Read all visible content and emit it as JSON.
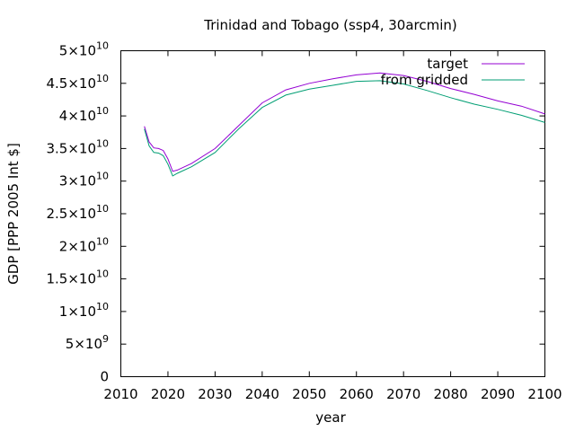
{
  "chart_data": {
    "type": "line",
    "title": "Trinidad and Tobago (ssp4, 30arcmin)",
    "xlabel": "year",
    "ylabel": "GDP [PPP 2005 Int $]",
    "xlim": [
      2010,
      2100
    ],
    "ylim": [
      0,
      50000000000
    ],
    "xticks": [
      {
        "value": 2010,
        "label": "2010"
      },
      {
        "value": 2020,
        "label": "2020"
      },
      {
        "value": 2030,
        "label": "2030"
      },
      {
        "value": 2040,
        "label": "2040"
      },
      {
        "value": 2050,
        "label": "2050"
      },
      {
        "value": 2060,
        "label": "2060"
      },
      {
        "value": 2070,
        "label": "2070"
      },
      {
        "value": 2080,
        "label": "2080"
      },
      {
        "value": 2090,
        "label": "2090"
      },
      {
        "value": 2100,
        "label": "2100"
      }
    ],
    "yticks": [
      {
        "value": 0,
        "mantissa": "0",
        "exponent": ""
      },
      {
        "value": 5000000000,
        "mantissa": "5×10",
        "exponent": "9"
      },
      {
        "value": 10000000000,
        "mantissa": "1×10",
        "exponent": "10"
      },
      {
        "value": 15000000000,
        "mantissa": "1.5×10",
        "exponent": "10"
      },
      {
        "value": 20000000000,
        "mantissa": "2×10",
        "exponent": "10"
      },
      {
        "value": 25000000000,
        "mantissa": "2.5×10",
        "exponent": "10"
      },
      {
        "value": 30000000000,
        "mantissa": "3×10",
        "exponent": "10"
      },
      {
        "value": 35000000000,
        "mantissa": "3.5×10",
        "exponent": "10"
      },
      {
        "value": 40000000000,
        "mantissa": "4×10",
        "exponent": "10"
      },
      {
        "value": 45000000000,
        "mantissa": "4.5×10",
        "exponent": "10"
      },
      {
        "value": 50000000000,
        "mantissa": "5×10",
        "exponent": "10"
      }
    ],
    "grid": false,
    "legend_position": "top-right",
    "series": [
      {
        "name": "target",
        "color": "#9400d3",
        "x": [
          2015,
          2016,
          2017,
          2018,
          2019,
          2020,
          2021,
          2022,
          2025,
          2030,
          2035,
          2040,
          2045,
          2050,
          2055,
          2060,
          2065,
          2070,
          2075,
          2080,
          2085,
          2090,
          2095,
          2100
        ],
        "y": [
          38400000000,
          36000000000,
          35100000000,
          35000000000,
          34700000000,
          33400000000,
          31500000000,
          31700000000,
          32700000000,
          35000000000,
          38500000000,
          42000000000,
          44000000000,
          45000000000,
          45700000000,
          46300000000,
          46600000000,
          46200000000,
          45300000000,
          44200000000,
          43300000000,
          42300000000,
          41500000000,
          40300000000
        ]
      },
      {
        "name": "from gridded",
        "color": "#009e73",
        "x": [
          2015,
          2016,
          2017,
          2018,
          2019,
          2020,
          2021,
          2022,
          2025,
          2030,
          2035,
          2040,
          2045,
          2050,
          2055,
          2060,
          2065,
          2070,
          2075,
          2080,
          2085,
          2090,
          2095,
          2100
        ],
        "y": [
          38000000000,
          35400000000,
          34400000000,
          34300000000,
          33900000000,
          32600000000,
          30800000000,
          31200000000,
          32200000000,
          34400000000,
          38000000000,
          41300000000,
          43200000000,
          44100000000,
          44700000000,
          45300000000,
          45400000000,
          44900000000,
          43900000000,
          42800000000,
          41800000000,
          41000000000,
          40100000000,
          39000000000
        ]
      }
    ]
  }
}
